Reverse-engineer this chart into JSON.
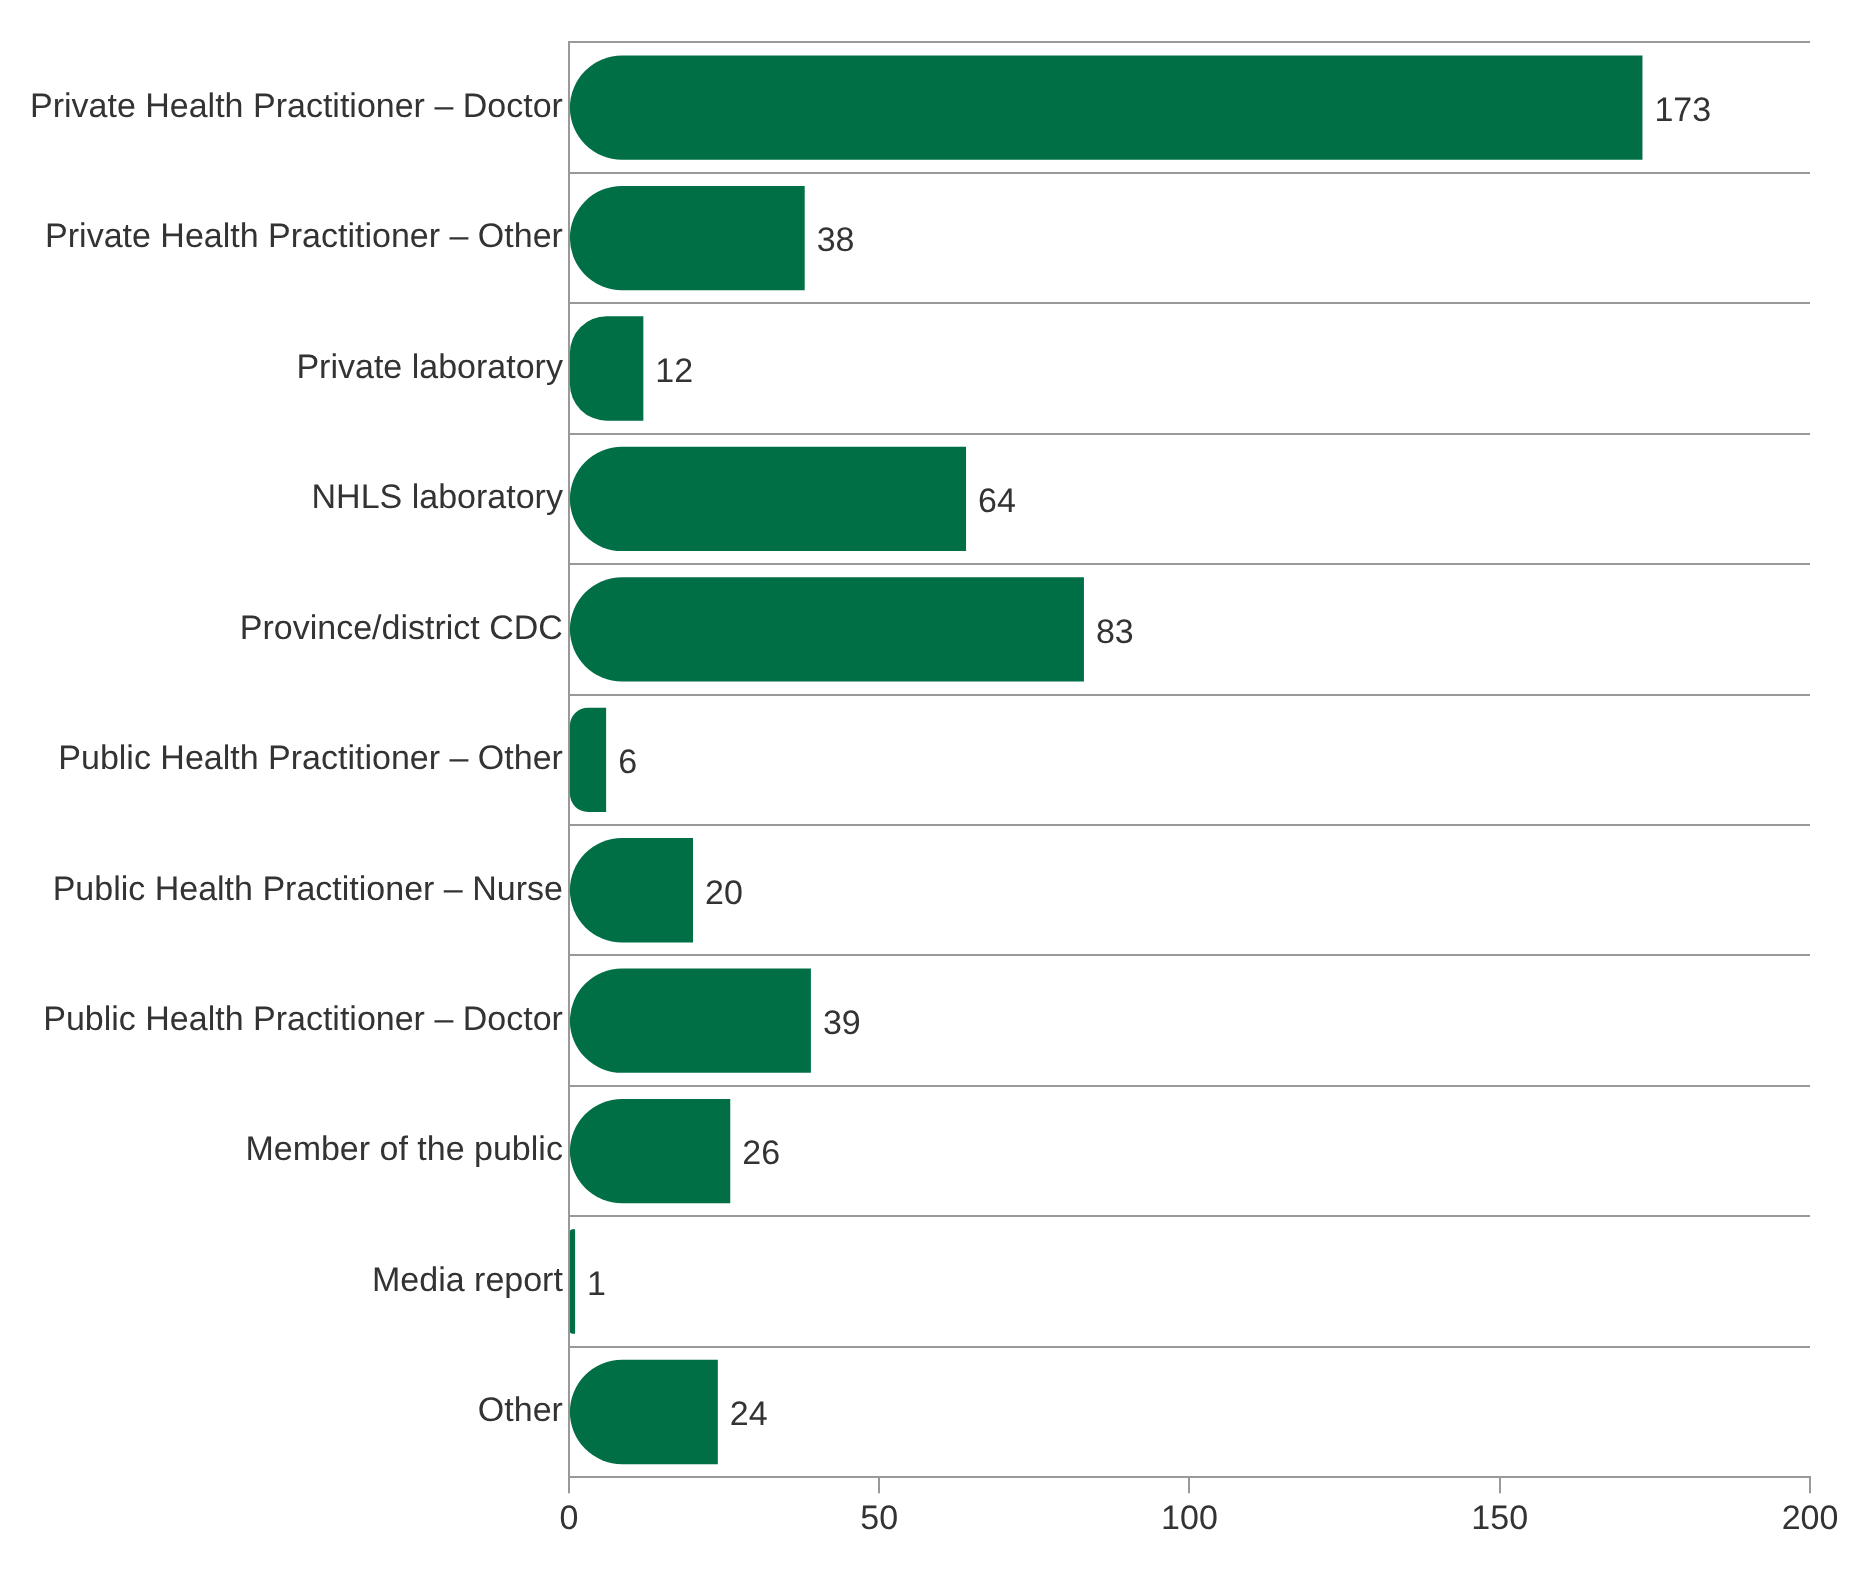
{
  "chart_data": {
    "type": "bar",
    "orientation": "horizontal",
    "categories": [
      "Private Health Practitioner – Doctor",
      "Private Health Practitioner – Other",
      "Private laboratory",
      "NHLS laboratory",
      "Province/district CDC",
      "Public Health Practitioner – Other",
      "Public Health Practitioner – Nurse",
      "Public Health Practitioner – Doctor",
      "Member of the public",
      "Media report",
      "Other"
    ],
    "values": [
      173,
      38,
      12,
      64,
      83,
      6,
      20,
      39,
      26,
      1,
      24
    ],
    "color": "#006f45",
    "xlim": [
      0,
      200
    ],
    "xticks": [
      0,
      50,
      100,
      150,
      200
    ],
    "grid": "y",
    "legend": false,
    "data_labels": true
  }
}
